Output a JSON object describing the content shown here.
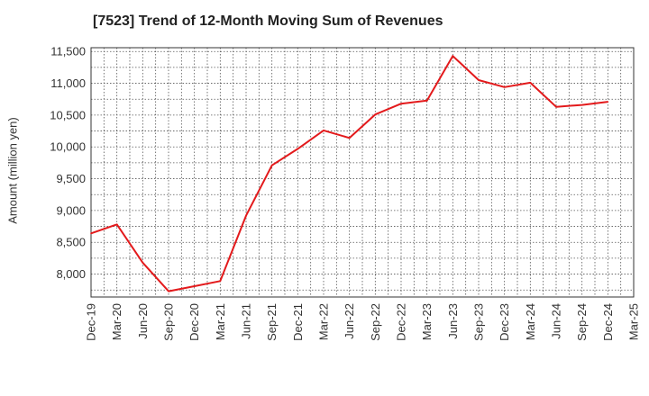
{
  "title": "[7523]  Trend of 12-Month Moving Sum of Revenues",
  "colors": {
    "line": "#e31a1c",
    "grid": "#555555",
    "frame": "#333333",
    "text": "#333333"
  },
  "chart_data": {
    "type": "line",
    "title": "[7523]  Trend of 12-Month Moving Sum of Revenues",
    "xlabel": "",
    "ylabel": "Amount (million yen)",
    "ylim": [
      7640,
      11560
    ],
    "grid": true,
    "categories": [
      "Dec-19",
      "Mar-20",
      "Jun-20",
      "Sep-20",
      "Dec-20",
      "Mar-21",
      "Jun-21",
      "Sep-21",
      "Dec-21",
      "Mar-22",
      "Jun-22",
      "Sep-22",
      "Dec-22",
      "Mar-23",
      "Jun-23",
      "Sep-23",
      "Dec-23",
      "Mar-24",
      "Jun-24",
      "Sep-24",
      "Dec-24",
      "Mar-25"
    ],
    "yticks": [
      8000,
      8500,
      9000,
      9500,
      10000,
      10500,
      11000,
      11500
    ],
    "ytick_labels": [
      "8,000",
      "8,500",
      "9,000",
      "9,500",
      "10,000",
      "10,500",
      "11,000",
      "11,500"
    ],
    "series": [
      {
        "values": [
          8640,
          8780,
          8180,
          7730,
          7810,
          7890,
          8920,
          9710,
          9970,
          10260,
          10140,
          10510,
          10680,
          10730,
          11430,
          11050,
          10940,
          11010,
          10630,
          10660,
          10710,
          null
        ]
      }
    ]
  }
}
